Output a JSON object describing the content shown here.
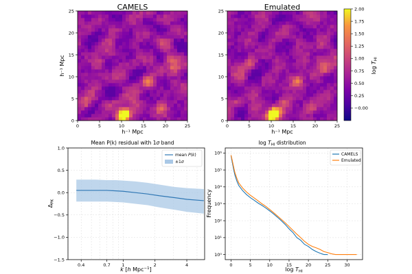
{
  "chart_data": [
    {
      "type": "heatmap",
      "title": "CAMELS",
      "xlabel": "h⁻¹ Mpc",
      "ylabel": "h⁻¹ Mpc",
      "xlim": [
        0,
        25
      ],
      "ylim": [
        0,
        25
      ],
      "xticks": [
        "0",
        "5",
        "10",
        "15",
        "20",
        "25"
      ],
      "yticks": [
        "0",
        "5",
        "10",
        "15",
        "20",
        "25"
      ],
      "colormap": "plasma",
      "value_range": [
        -0.25,
        2.0
      ],
      "grid_size": 32
    },
    {
      "type": "heatmap",
      "title": "Emulated",
      "xlabel": "h⁻¹ Mpc",
      "xlim": [
        0,
        25
      ],
      "ylim": [
        0,
        25
      ],
      "xticks": [
        "0",
        "5",
        "10",
        "15",
        "20",
        "25"
      ],
      "yticks": [
        "0",
        "5",
        "10",
        "15",
        "20",
        "25"
      ],
      "colormap": "plasma",
      "value_range": [
        -0.25,
        2.0
      ],
      "grid_size": 32,
      "colorbar": {
        "label": "log T_HI",
        "ticks": [
          "−0.00",
          "0.25",
          "0.50",
          "0.75",
          "1.00",
          "1.25",
          "1.50",
          "1.75",
          "2.00"
        ],
        "tick_values": [
          0.0,
          0.25,
          0.5,
          0.75,
          1.0,
          1.25,
          1.5,
          1.75,
          2.0
        ]
      }
    },
    {
      "type": "line",
      "title": "Mean P(k) residual with 1σ band",
      "xlabel": "k [h Mpc⁻¹]",
      "ylabel": "ΔPK",
      "xscale": "log",
      "xlim": [
        0.3,
        5.9
      ],
      "ylim": [
        -1.5,
        1.0
      ],
      "xticks": [
        {
          "value": 0.4,
          "label": "0.4"
        },
        {
          "value": 0.7,
          "label": "0.7"
        },
        {
          "value": 1,
          "label": "1"
        },
        {
          "value": 2,
          "label": "2"
        },
        {
          "value": 4,
          "label": "4"
        }
      ],
      "yticks": [
        {
          "value": 1.0,
          "label": "1.0"
        },
        {
          "value": 0.5,
          "label": "0.5"
        },
        {
          "value": 0.0,
          "label": "0.0"
        },
        {
          "value": -0.5,
          "label": "−0.5"
        },
        {
          "value": -1.0,
          "label": "−1.0"
        },
        {
          "value": -1.5,
          "label": "−1.5"
        }
      ],
      "grid": true,
      "legend": "top-right",
      "x": [
        0.36,
        0.45,
        0.55,
        0.7,
        0.85,
        1.0,
        1.3,
        1.7,
        2.2,
        3.0,
        4.0,
        5.8
      ],
      "series": [
        {
          "name": "mean P(k)",
          "values": [
            0.05,
            0.05,
            0.05,
            0.05,
            0.04,
            0.03,
            0.0,
            -0.03,
            -0.07,
            -0.11,
            -0.15,
            -0.18
          ]
        },
        {
          "name": "±1σ",
          "lower": [
            -0.2,
            -0.2,
            -0.2,
            -0.2,
            -0.21,
            -0.22,
            -0.25,
            -0.28,
            -0.33,
            -0.38,
            -0.43,
            -0.47
          ],
          "upper": [
            0.29,
            0.29,
            0.29,
            0.28,
            0.28,
            0.27,
            0.25,
            0.22,
            0.18,
            0.13,
            0.1,
            0.08
          ]
        }
      ],
      "colors": {
        "line": "#2f77b4",
        "band": "#a9c8e6"
      }
    },
    {
      "type": "line",
      "title": "log T_HI distribution",
      "xlabel": "log T_HI",
      "ylabel": "Frequency",
      "yscale": "log",
      "xlim": [
        -1.5,
        34
      ],
      "ylim": [
        0.5,
        2000000
      ],
      "xticks": [
        "0",
        "5",
        "10",
        "15",
        "20",
        "25",
        "30"
      ],
      "yticks": [
        "10⁰",
        "10¹",
        "10²",
        "10³",
        "10⁴",
        "10⁵",
        "10⁶"
      ],
      "grid": true,
      "legend": "top-right",
      "x": [
        0,
        0.3,
        0.7,
        1,
        1.5,
        2,
        3,
        4,
        5,
        6,
        7,
        8,
        9,
        10,
        11,
        12,
        13,
        14,
        15,
        16,
        17,
        18,
        19,
        20,
        21,
        22,
        23,
        24,
        25,
        26,
        27,
        28,
        30,
        32.5
      ],
      "series": [
        {
          "name": "CAMELS",
          "values": [
            700000,
            300000,
            100000,
            50000,
            22000,
            12000,
            6000,
            3500,
            2300,
            1600,
            1100,
            800,
            560,
            380,
            250,
            160,
            100,
            60,
            33,
            20,
            10,
            7,
            4,
            3,
            2,
            1.5,
            1.2,
            1,
            1,
            0,
            0,
            0,
            0,
            0
          ]
        },
        {
          "name": "Emulated",
          "values": [
            750000,
            380000,
            140000,
            70000,
            32000,
            17000,
            8500,
            5000,
            3200,
            2200,
            1500,
            1000,
            700,
            460,
            300,
            190,
            120,
            75,
            45,
            27,
            16,
            10,
            6,
            4,
            3,
            2.5,
            2,
            1.5,
            1.3,
            1.1,
            1,
            1,
            1,
            1
          ]
        }
      ],
      "colors": {
        "CAMELS": "#1f77b4",
        "Emulated": "#ff7f0e"
      }
    }
  ]
}
